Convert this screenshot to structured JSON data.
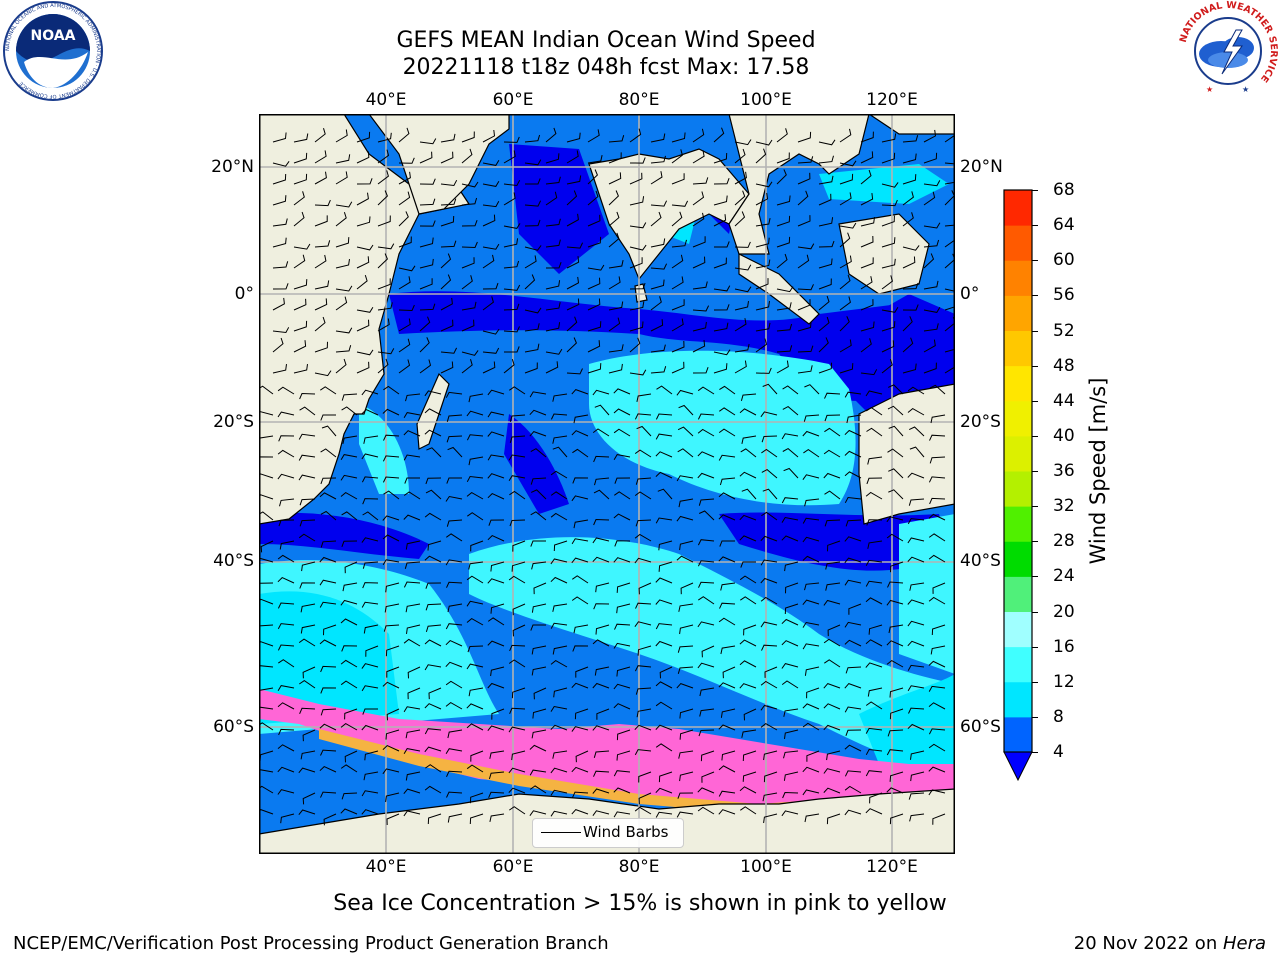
{
  "title": {
    "line1": "GEFS MEAN Indian Ocean Wind Speed",
    "line2": "20221118 t18z 048h fcst   Max: 17.58"
  },
  "logos": {
    "left": {
      "name": "NOAA",
      "ring_text": "NATIONAL OCEANIC AND ATMOSPHERIC ADMINISTRATION · U.S. DEPARTMENT OF COMMERCE"
    },
    "right": {
      "ring_text": "NATIONAL WEATHER SERVICE"
    }
  },
  "map": {
    "lon_ticks": [
      "40°E",
      "60°E",
      "80°E",
      "100°E",
      "120°E"
    ],
    "lat_ticks": [
      "20°N",
      "0°",
      "20°S",
      "40°S",
      "60°S"
    ],
    "colors": {
      "land": "#efefdf",
      "gridline": "#b3b3b3",
      "coast": "#000000"
    },
    "legend_label": "Wind Barbs"
  },
  "colorbar": {
    "label": "Wind Speed [m/s]",
    "ticks": [
      "4",
      "8",
      "12",
      "16",
      "20",
      "24",
      "28",
      "32",
      "36",
      "40",
      "44",
      "48",
      "52",
      "56",
      "60",
      "64",
      "68"
    ],
    "colors": [
      "#0064ff",
      "#00e6ff",
      "#40ffff",
      "#a0ffff",
      "#50f07a",
      "#00dc00",
      "#50f000",
      "#b4f000",
      "#dcf000",
      "#f0f000",
      "#ffe600",
      "#ffc800",
      "#ffa500",
      "#ff8200",
      "#ff5a00",
      "#ff2800"
    ],
    "under_color": "#0000ff"
  },
  "caption": "Sea Ice Concentration > 15% is shown in pink to yellow",
  "footer": {
    "left": "NCEP/EMC/Verification Post Processing Product Generation Branch",
    "right_date": "20 Nov 2022 on ",
    "right_host": "Hera"
  }
}
